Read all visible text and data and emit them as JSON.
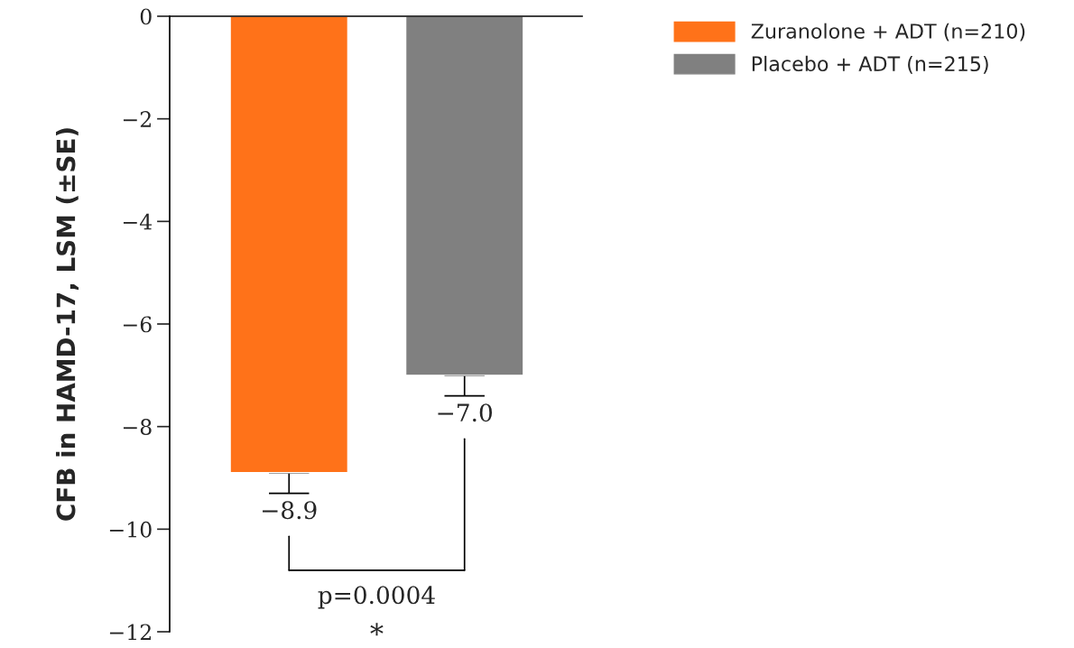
{
  "chart_data": {
    "type": "bar",
    "ylabel": "CFB in HAMD-17, LSM (±SE)",
    "categories": [
      null,
      null
    ],
    "series": [
      {
        "name": "Zuranolone + ADT (n=210)",
        "color": "#ff7219",
        "values": [
          -8.9,
          null
        ],
        "errors": [
          [
            -9.3,
            -8.9
          ],
          null
        ],
        "value_labels": [
          "−8.9",
          null
        ]
      },
      {
        "name": "Placebo + ADT (n=215)",
        "color": "#808080",
        "values": [
          null,
          -7.0
        ],
        "errors": [
          null,
          [
            -7.4,
            -7.0
          ]
        ],
        "value_labels": [
          null,
          "−7.0"
        ]
      }
    ],
    "ylim": [
      -12,
      0
    ],
    "yticks": [
      0,
      {
        "value": -2,
        "label": "−2"
      },
      {
        "value": -4,
        "label": "−4"
      },
      {
        "value": -6,
        "label": "−6"
      },
      {
        "value": -8,
        "label": "−8"
      },
      {
        "value": -10,
        "label": "−10"
      },
      {
        "value": -12,
        "label": "−12"
      }
    ],
    "annotations": [
      "p=0.0004",
      "*"
    ],
    "legend": "top right",
    "grid": false
  }
}
